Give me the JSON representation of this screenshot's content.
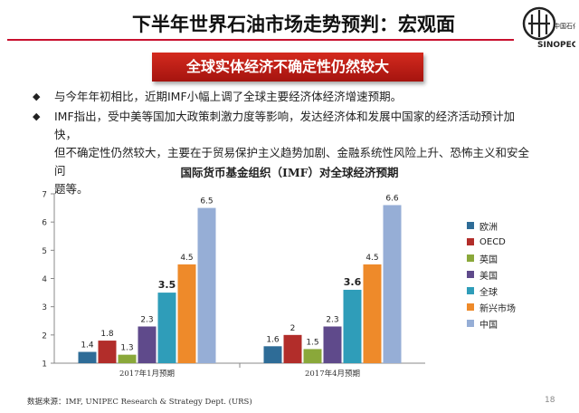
{
  "header": {
    "title": "下半年世界石油市场走势预判：宏观面",
    "logo_text": "SINOPEC"
  },
  "banner": {
    "text": "全球实体经济不确定性仍然较大"
  },
  "bullets": [
    {
      "lines": [
        "与今年年初相比，近期IMF小幅上调了全球主要经济体经济增速预期。"
      ]
    },
    {
      "lines": [
        "IMF指出，受中美等国加大政策刺激力度等影响，发达经济体和发展中国家的经济活动预计加快，",
        "但不确定性仍然较大，主要在于贸易保护主义趋势加剧、金融系统性风险上升、恐怖主义和安全问",
        "题等。"
      ]
    }
  ],
  "chart_data": {
    "type": "bar",
    "title": "国际货币基金组织（IMF）对全球经济预期",
    "categories": [
      "2017年1月预期",
      "2017年4月预期"
    ],
    "series": [
      {
        "name": "欧洲",
        "values": [
          1.4,
          1.6
        ],
        "labels": [
          "1.4",
          "1.6"
        ],
        "color": "#2e6c97"
      },
      {
        "name": "OECD",
        "values": [
          1.8,
          2.0
        ],
        "labels": [
          "1.8",
          "2"
        ],
        "color": "#b22d2a"
      },
      {
        "name": "英国",
        "values": [
          1.3,
          1.5
        ],
        "labels": [
          "1.3",
          "1.5"
        ],
        "color": "#8aa83a"
      },
      {
        "name": "美国",
        "values": [
          2.3,
          2.3
        ],
        "labels": [
          "2.3",
          "2.3"
        ],
        "color": "#5f4a8b"
      },
      {
        "name": "全球",
        "values": [
          3.5,
          3.6
        ],
        "labels": [
          "3.5",
          "3.6"
        ],
        "color": "#2f9db9",
        "bold_labels": true
      },
      {
        "name": "新兴市场",
        "values": [
          4.5,
          4.5
        ],
        "labels": [
          "4.5",
          "4.5"
        ],
        "color": "#ee8a2a"
      },
      {
        "name": "中国",
        "values": [
          6.5,
          6.6
        ],
        "labels": [
          "6.5",
          "6.6"
        ],
        "color": "#96aed6"
      }
    ],
    "y_ticks": [
      "1",
      "2",
      "3",
      "4",
      "5",
      "6",
      "7"
    ],
    "ylim": [
      1,
      7
    ],
    "grid": false,
    "legend_position": "right"
  },
  "footer": {
    "source": "数据来源：IMF, UNIPEC Research & Strategy Dept. (URS)",
    "page": "18"
  }
}
